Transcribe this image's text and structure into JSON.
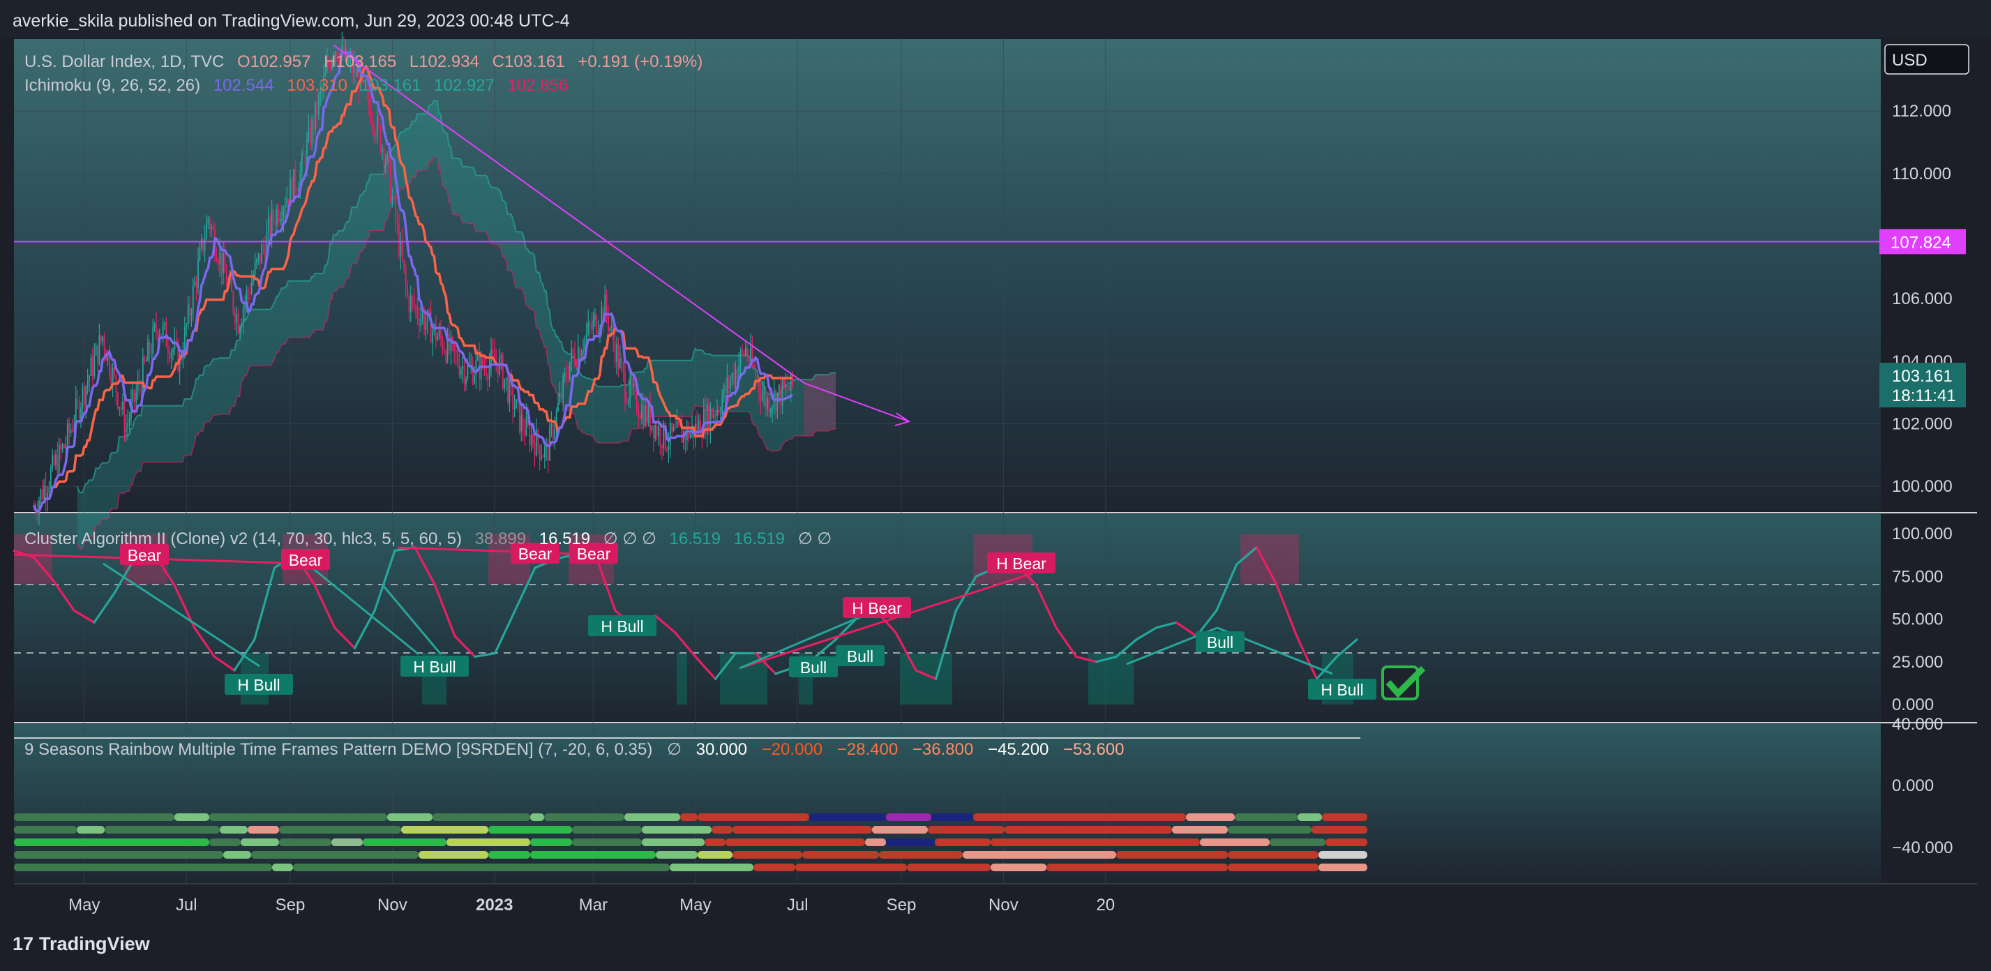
{
  "header": {
    "publisher": "averkie_skila published on TradingView.com, Jun 29, 2023 00:48 UTC-4"
  },
  "colors": {
    "bg": "#1c1f27",
    "up": "#26a69a",
    "down": "#e91e63",
    "tenkan": "#7b68ee",
    "kijun": "#ff6347",
    "cloud": "#26a69a",
    "cloud_bear": "#e91e63",
    "trend": "#e040fb",
    "level": "#e040fb"
  },
  "price_pane": {
    "legend1": {
      "symbol": "U.S. Dollar Index, 1D, TVC",
      "o": "O102.957",
      "h": "H103.165",
      "l": "L102.934",
      "c": "C103.161",
      "chg": "+0.191 (+0.19%)"
    },
    "legend2": {
      "name": "Ichimoku (9, 26, 52, 26)",
      "v1": "102.544",
      "v2": "103.310",
      "v3": "103.161",
      "v4": "102.927",
      "v5": "102.856"
    },
    "currency_button": "USD",
    "level_label": "107.824",
    "last_price": "103.161",
    "countdown": "18:11:41"
  },
  "osc_pane": {
    "legend": {
      "name": "Cluster Algorithm II (Clone) v2 (14, 70, 30, hlc3, 5, 5, 60, 5)",
      "v1": "38.899",
      "v2": "16.519",
      "v3": "∅  ∅  ∅",
      "v4": "16.519",
      "v5": "16.519",
      "v6": "∅  ∅"
    },
    "labels": {
      "bear": "Bear",
      "hbear": "H Bear",
      "bull": "Bull",
      "hbull": "H Bull"
    }
  },
  "rainbow_pane": {
    "legend": {
      "name": "9 Seasons Rainbow Multiple Time Frames Pattern DEMO [9SRDEN] (7, -20, 6, 0.35)",
      "v0": "∅",
      "v1": "30.000",
      "v2": "−20.000",
      "v3": "−28.400",
      "v4": "−36.800",
      "v5": "−45.200",
      "v6": "−53.600"
    }
  },
  "footer": {
    "brand": "TradingView",
    "logo": "17"
  },
  "chart_data": [
    {
      "type": "line",
      "title": "U.S. Dollar Index, 1D, TVC",
      "x_ticks": [
        "May",
        "Jul",
        "Sep",
        "Nov",
        "2023",
        "Mar",
        "May",
        "Jul",
        "Sep",
        "Nov",
        "20"
      ],
      "y_ticks": [
        "100.000",
        "102.000",
        "104.000",
        "106.000",
        "110.000",
        "112.000"
      ],
      "ylim": [
        99.2,
        114.3
      ],
      "series": [
        {
          "name": "C",
          "x": [
            "2022-04-01",
            "2022-04-20",
            "2022-05-12",
            "2022-05-26",
            "2022-06-14",
            "2022-06-27",
            "2022-07-14",
            "2022-08-01",
            "2022-08-22",
            "2022-09-07",
            "2022-09-27",
            "2022-10-13",
            "2022-10-28",
            "2022-11-10",
            "2022-11-25",
            "2022-12-15",
            "2023-01-03",
            "2023-01-17",
            "2023-02-01",
            "2023-02-15",
            "2023-03-08",
            "2023-03-20",
            "2023-04-03",
            "2023-04-13",
            "2023-05-01",
            "2023-05-15",
            "2023-05-31",
            "2023-06-12",
            "2023-06-28"
          ],
          "values": [
            99.3,
            101.4,
            104.8,
            101.9,
            105.2,
            104.0,
            108.6,
            105.3,
            108.6,
            110.0,
            114.1,
            113.0,
            110.6,
            106.0,
            105.0,
            103.7,
            104.0,
            102.0,
            101.0,
            104.0,
            105.7,
            103.2,
            102.2,
            101.5,
            101.8,
            102.6,
            104.4,
            102.7,
            103.161
          ]
        }
      ],
      "kijun_level": 107.824,
      "trendline": {
        "from": [
          "2022-09-27",
          114.1
        ],
        "to": [
          "2023-07-05",
          103.3
        ]
      }
    },
    {
      "type": "line",
      "title": "Cluster Algorithm II (Clone) v2",
      "y_ticks": [
        "0.000",
        "25.000",
        "50.000",
        "75.000",
        "100.000"
      ],
      "ylim": [
        -5,
        105
      ],
      "levels": [
        70,
        30
      ],
      "series": [
        {
          "name": "osc",
          "values": [
            90,
            86,
            72,
            55,
            48,
            65,
            85,
            88,
            70,
            45,
            28,
            20,
            38,
            80,
            88,
            70,
            45,
            33,
            55,
            90,
            92,
            70,
            40,
            28,
            30,
            55,
            80,
            85,
            88,
            88,
            55,
            45,
            52,
            42,
            28,
            15,
            30,
            30,
            18,
            22,
            28,
            38,
            50,
            55,
            42,
            20,
            15,
            55,
            75,
            80,
            82,
            70,
            45,
            28,
            25,
            28,
            38,
            45,
            48,
            40,
            55,
            82,
            92,
            70,
            40,
            15,
            28,
            38
          ]
        }
      ]
    },
    {
      "type": "heatmap",
      "title": "9 Seasons Rainbow Multiple Time Frames Pattern DEMO [9SRDEN]",
      "y_ticks": [
        "40.000",
        "0.000",
        "−40.000"
      ],
      "rows": 5
    }
  ]
}
